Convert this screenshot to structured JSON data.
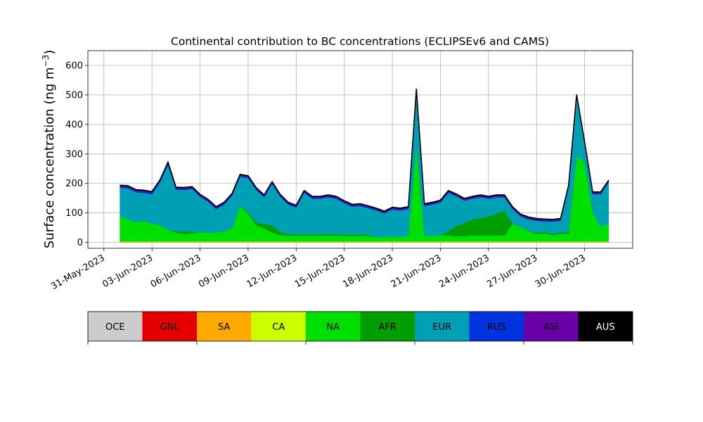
{
  "chart_data": {
    "type": "area",
    "title": "Continental contribution to BC concentrations (ECLIPSEv6 and CAMS)",
    "ylabel": "Surface concentration (ng m⁻³)",
    "ylabel_base": "Surface concentration (ng m",
    "ylabel_sup": "−3",
    "ylabel_close": ")",
    "xlabel": "",
    "stacked": true,
    "grid": true,
    "x_range": [
      "2023-05-30",
      "2023-07-03"
    ],
    "ylim": [
      -20,
      650
    ],
    "y_ticks": [
      0,
      100,
      200,
      300,
      400,
      500,
      600
    ],
    "x_ticks": [
      "31-May-2023",
      "03-Jun-2023",
      "06-Jun-2023",
      "09-Jun-2023",
      "12-Jun-2023",
      "15-Jun-2023",
      "18-Jun-2023",
      "21-Jun-2023",
      "24-Jun-2023",
      "27-Jun-2023",
      "30-Jun-2023"
    ],
    "x_tick_dates": [
      "2023-05-31",
      "2023-06-03",
      "2023-06-06",
      "2023-06-09",
      "2023-06-12",
      "2023-06-15",
      "2023-06-18",
      "2023-06-21",
      "2023-06-24",
      "2023-06-27",
      "2023-06-30"
    ],
    "x": [
      "2023-06-01",
      "2023-06-01 12:00",
      "2023-06-02",
      "2023-06-02 12:00",
      "2023-06-03",
      "2023-06-03 12:00",
      "2023-06-04",
      "2023-06-04 12:00",
      "2023-06-05",
      "2023-06-05 12:00",
      "2023-06-06",
      "2023-06-06 12:00",
      "2023-06-07",
      "2023-06-07 12:00",
      "2023-06-08",
      "2023-06-08 12:00",
      "2023-06-09",
      "2023-06-09 12:00",
      "2023-06-10",
      "2023-06-10 12:00",
      "2023-06-11",
      "2023-06-11 12:00",
      "2023-06-12",
      "2023-06-12 12:00",
      "2023-06-13",
      "2023-06-13 12:00",
      "2023-06-14",
      "2023-06-14 12:00",
      "2023-06-15",
      "2023-06-15 12:00",
      "2023-06-16",
      "2023-06-16 12:00",
      "2023-06-17",
      "2023-06-17 12:00",
      "2023-06-18",
      "2023-06-18 12:00",
      "2023-06-19",
      "2023-06-19 12:00",
      "2023-06-20",
      "2023-06-20 12:00",
      "2023-06-21",
      "2023-06-21 12:00",
      "2023-06-22",
      "2023-06-22 12:00",
      "2023-06-23",
      "2023-06-23 12:00",
      "2023-06-24",
      "2023-06-24 12:00",
      "2023-06-25",
      "2023-06-25 12:00",
      "2023-06-26",
      "2023-06-26 12:00",
      "2023-06-27",
      "2023-06-27 12:00",
      "2023-06-28",
      "2023-06-28 12:00",
      "2023-06-29",
      "2023-06-29 12:00",
      "2023-06-30",
      "2023-06-30 12:00",
      "2023-07-01",
      "2023-07-01 12:00"
    ],
    "series": [
      {
        "name": "OCE",
        "color": "#cccccc",
        "values": [
          0,
          0,
          0,
          0,
          0,
          0,
          0,
          0,
          0,
          0,
          0,
          0,
          0,
          0,
          0,
          0,
          0,
          0,
          0,
          0,
          0,
          0,
          0,
          0,
          0,
          0,
          0,
          0,
          0,
          0,
          0,
          0,
          0,
          0,
          0,
          0,
          0,
          0,
          0,
          0,
          0,
          0,
          0,
          0,
          0,
          0,
          0,
          0,
          0,
          0,
          0,
          0,
          0,
          0,
          0,
          0,
          0,
          0,
          0,
          0,
          0,
          0
        ]
      },
      {
        "name": "GNL",
        "color": "#e50000",
        "values": [
          0,
          0,
          0,
          0,
          0,
          0,
          0,
          0,
          0,
          0,
          0,
          0,
          0,
          0,
          0,
          0,
          0,
          0,
          0,
          0,
          0,
          0,
          0,
          0,
          0,
          0,
          0,
          0,
          0,
          0,
          0,
          0,
          0,
          0,
          0,
          0,
          0,
          0,
          0,
          0,
          0,
          0,
          0,
          0,
          0,
          0,
          0,
          0,
          0,
          0,
          0,
          0,
          0,
          0,
          0,
          0,
          0,
          0,
          0,
          0,
          0,
          0
        ]
      },
      {
        "name": "SA",
        "color": "#ffaa00",
        "values": [
          2,
          2,
          2,
          2,
          2,
          2,
          2,
          2,
          2,
          2,
          2,
          2,
          2,
          2,
          2,
          2,
          2,
          2,
          2,
          2,
          2,
          2,
          2,
          2,
          2,
          2,
          2,
          2,
          2,
          2,
          2,
          2,
          2,
          2,
          2,
          2,
          2,
          2,
          2,
          2,
          2,
          2,
          2,
          2,
          2,
          2,
          2,
          2,
          2,
          2,
          2,
          2,
          2,
          2,
          2,
          2,
          2,
          2,
          2,
          2,
          2,
          2
        ]
      },
      {
        "name": "CA",
        "color": "#ccff00",
        "values": [
          1,
          1,
          1,
          1,
          1,
          1,
          1,
          1,
          1,
          1,
          1,
          1,
          1,
          1,
          1,
          1,
          1,
          1,
          1,
          1,
          1,
          1,
          1,
          1,
          1,
          1,
          1,
          1,
          1,
          1,
          1,
          1,
          1,
          1,
          1,
          1,
          1,
          1,
          1,
          1,
          1,
          1,
          1,
          1,
          1,
          1,
          1,
          1,
          1,
          1,
          1,
          1,
          1,
          1,
          1,
          1,
          1,
          1,
          1,
          1,
          1,
          1
        ]
      },
      {
        "name": "NA",
        "color": "#00e000",
        "values": [
          87,
          75,
          65,
          70,
          60,
          55,
          40,
          30,
          25,
          28,
          32,
          30,
          30,
          35,
          45,
          120,
          95,
          55,
          45,
          30,
          22,
          20,
          20,
          20,
          20,
          20,
          20,
          20,
          20,
          18,
          20,
          18,
          15,
          15,
          18,
          15,
          20,
          330,
          20,
          20,
          22,
          20,
          18,
          18,
          20,
          20,
          20,
          20,
          20,
          60,
          50,
          35,
          25,
          28,
          22,
          25,
          28,
          290,
          270,
          100,
          50,
          60
        ]
      },
      {
        "name": "AFR",
        "color": "#009e00",
        "values": [
          0,
          0,
          0,
          0,
          0,
          0,
          0,
          5,
          10,
          5,
          0,
          0,
          0,
          0,
          0,
          0,
          5,
          10,
          15,
          25,
          10,
          5,
          5,
          5,
          5,
          5,
          5,
          5,
          5,
          5,
          5,
          5,
          0,
          0,
          0,
          0,
          0,
          0,
          0,
          0,
          0,
          15,
          35,
          45,
          55,
          60,
          65,
          75,
          85,
          0,
          0,
          0,
          5,
          5,
          5,
          5,
          5,
          0,
          0,
          0,
          0,
          0
        ]
      },
      {
        "name": "EUR",
        "color": "#00a0b4",
        "values": [
          95,
          105,
          102,
          95,
          100,
          145,
          220,
          140,
          140,
          145,
          120,
          105,
          80,
          90,
          110,
          100,
          115,
          110,
          90,
          140,
          120,
          100,
          90,
          140,
          120,
          120,
          125,
          120,
          105,
          95,
          95,
          90,
          90,
          80,
          90,
          90,
          90,
          180,
          100,
          105,
          110,
          130,
          100,
          75,
          70,
          70,
          60,
          55,
          45,
          50,
          35,
          40,
          40,
          35,
          40,
          40,
          150,
          200,
          60,
          60,
          110,
          140
        ]
      },
      {
        "name": "RUS",
        "color": "#0033dd",
        "values": [
          4,
          4,
          4,
          4,
          4,
          4,
          4,
          4,
          3,
          3,
          3,
          3,
          3,
          3,
          3,
          3,
          3,
          3,
          3,
          3,
          3,
          3,
          3,
          3,
          3,
          3,
          3,
          3,
          3,
          3,
          3,
          3,
          3,
          3,
          3,
          3,
          3,
          3,
          3,
          3,
          3,
          3,
          3,
          3,
          3,
          3,
          3,
          3,
          3,
          3,
          3,
          3,
          3,
          3,
          3,
          3,
          3,
          3,
          3,
          3,
          3,
          3
        ]
      },
      {
        "name": "ASI",
        "color": "#6a00a8",
        "values": [
          3,
          3,
          3,
          3,
          3,
          3,
          3,
          3,
          3,
          3,
          3,
          3,
          3,
          3,
          3,
          3,
          3,
          3,
          3,
          3,
          3,
          3,
          3,
          3,
          3,
          3,
          3,
          3,
          3,
          3,
          3,
          3,
          3,
          3,
          3,
          3,
          3,
          3,
          3,
          3,
          3,
          3,
          3,
          3,
          3,
          3,
          3,
          3,
          3,
          3,
          3,
          3,
          3,
          3,
          3,
          3,
          3,
          3,
          3,
          3,
          3,
          3
        ]
      },
      {
        "name": "AUS",
        "color": "#000000",
        "values": [
          2,
          2,
          2,
          2,
          2,
          2,
          2,
          2,
          2,
          2,
          2,
          2,
          2,
          2,
          2,
          2,
          2,
          2,
          2,
          2,
          2,
          2,
          2,
          2,
          2,
          2,
          2,
          2,
          2,
          2,
          2,
          2,
          2,
          2,
          2,
          2,
          2,
          2,
          2,
          2,
          2,
          2,
          2,
          2,
          2,
          2,
          2,
          2,
          2,
          2,
          2,
          2,
          2,
          2,
          2,
          2,
          2,
          2,
          2,
          2,
          2,
          2
        ]
      }
    ],
    "legend": {
      "placement": "bottom",
      "entries": [
        "OCE",
        "GNL",
        "SA",
        "CA",
        "NA",
        "AFR",
        "EUR",
        "RUS",
        "ASI",
        "AUS"
      ],
      "colors": [
        "#cccccc",
        "#e50000",
        "#ffaa00",
        "#ccff00",
        "#00e000",
        "#009e00",
        "#00a0b4",
        "#0033dd",
        "#6a00a8",
        "#000000"
      ],
      "label_colors": [
        "#000000",
        "#000000",
        "#000000",
        "#000000",
        "#000000",
        "#000000",
        "#000000",
        "#000000",
        "#000000",
        "#ffffff"
      ]
    }
  }
}
